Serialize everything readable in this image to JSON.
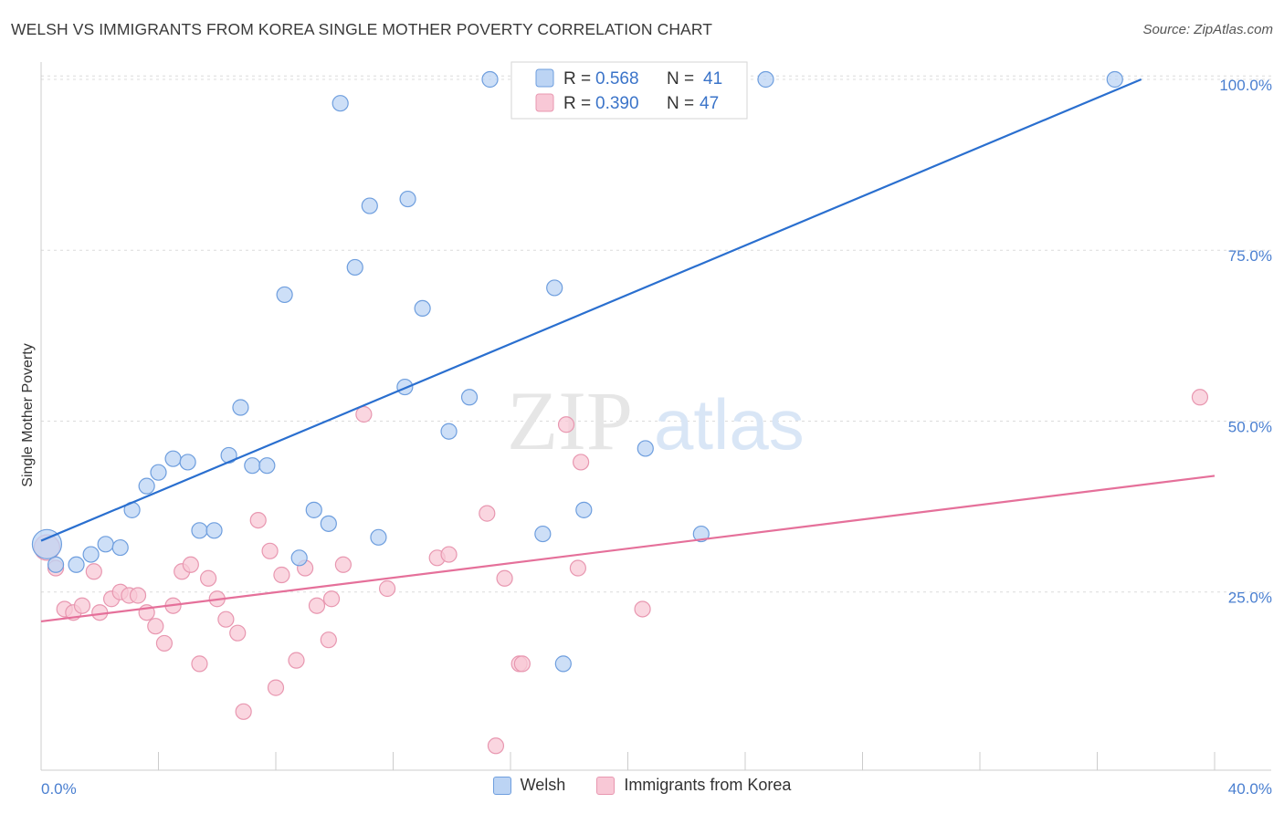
{
  "title": "WELSH VS IMMIGRANTS FROM KOREA SINGLE MOTHER POVERTY CORRELATION CHART",
  "source": "Source: ZipAtlas.com",
  "watermark": {
    "zip": "ZIP",
    "atlas": "atlas"
  },
  "colors": {
    "welsh_fill": "#bcd4f4",
    "welsh_stroke": "#6e9ede",
    "welsh_line": "#2a6fcf",
    "korea_fill": "#f8c8d6",
    "korea_stroke": "#e897b0",
    "korea_line": "#e5709a",
    "tick_text": "#4a7fd0",
    "grid": "#dcdcdc"
  },
  "stats_legend": [
    {
      "r_label": "R = ",
      "r_value": "0.568",
      "n_label": "N = ",
      "n_value": "41"
    },
    {
      "r_label": "R = ",
      "r_value": "0.390",
      "n_label": "N = ",
      "n_value": "47"
    }
  ],
  "chart_data": {
    "type": "scatter",
    "title": "WELSH VS IMMIGRANTS FROM KOREA SINGLE MOTHER POVERTY CORRELATION CHART",
    "xlabel": "",
    "ylabel": "Single Mother Poverty",
    "xlim": [
      0,
      40
    ],
    "ylim": [
      0,
      102
    ],
    "x_tick_labels": [
      {
        "v": 0,
        "label": "0.0%"
      },
      {
        "v": 40,
        "label": "40.0%"
      }
    ],
    "y_tick_labels": [
      {
        "v": 25,
        "label": "25.0%"
      },
      {
        "v": 50,
        "label": "50.0%"
      },
      {
        "v": 75,
        "label": "75.0%"
      },
      {
        "v": 100,
        "label": "100.0%"
      }
    ],
    "legend": "bottom-center",
    "grid": true,
    "series": [
      {
        "name": "Welsh",
        "trend": [
          [
            0,
            32.5
          ],
          [
            37.5,
            100
          ]
        ],
        "points": [
          [
            0.2,
            32.0
          ],
          [
            0.5,
            29.0
          ],
          [
            1.2,
            29.0
          ],
          [
            1.7,
            30.5
          ],
          [
            2.2,
            32.0
          ],
          [
            2.7,
            31.5
          ],
          [
            3.1,
            37.0
          ],
          [
            3.6,
            40.5
          ],
          [
            4.0,
            42.5
          ],
          [
            4.5,
            44.5
          ],
          [
            5.0,
            44.0
          ],
          [
            5.4,
            34.0
          ],
          [
            5.9,
            34.0
          ],
          [
            6.4,
            45.0
          ],
          [
            6.8,
            52.0
          ],
          [
            7.2,
            43.5
          ],
          [
            7.7,
            43.5
          ],
          [
            8.3,
            68.5
          ],
          [
            8.8,
            30.0
          ],
          [
            9.3,
            37.0
          ],
          [
            9.8,
            35.0
          ],
          [
            10.2,
            96.5
          ],
          [
            10.7,
            72.5
          ],
          [
            11.2,
            81.5
          ],
          [
            11.5,
            33.0
          ],
          [
            12.4,
            55.0
          ],
          [
            12.5,
            82.5
          ],
          [
            13.0,
            66.5
          ],
          [
            13.9,
            48.5
          ],
          [
            14.6,
            53.5
          ],
          [
            15.3,
            100.0
          ],
          [
            17.1,
            33.5
          ],
          [
            17.5,
            69.5
          ],
          [
            17.8,
            14.5
          ],
          [
            18.5,
            37.0
          ],
          [
            19.6,
            100.0
          ],
          [
            20.6,
            46.0
          ],
          [
            21.1,
            100.0
          ],
          [
            22.5,
            33.5
          ],
          [
            24.7,
            100.0
          ],
          [
            36.6,
            100.0
          ]
        ]
      },
      {
        "name": "Immigrants from Korea",
        "trend": [
          [
            0,
            20.7
          ],
          [
            40,
            42.0
          ]
        ],
        "points": [
          [
            0.2,
            31.5
          ],
          [
            0.5,
            28.5
          ],
          [
            0.8,
            22.5
          ],
          [
            1.1,
            22.0
          ],
          [
            1.4,
            23.0
          ],
          [
            1.8,
            28.0
          ],
          [
            2.0,
            22.0
          ],
          [
            2.4,
            24.0
          ],
          [
            2.7,
            25.0
          ],
          [
            3.0,
            24.5
          ],
          [
            3.3,
            24.5
          ],
          [
            3.6,
            22.0
          ],
          [
            3.9,
            20.0
          ],
          [
            4.2,
            17.5
          ],
          [
            4.5,
            23.0
          ],
          [
            4.8,
            28.0
          ],
          [
            5.1,
            29.0
          ],
          [
            5.4,
            14.5
          ],
          [
            5.7,
            27.0
          ],
          [
            6.0,
            24.0
          ],
          [
            6.3,
            21.0
          ],
          [
            6.7,
            19.0
          ],
          [
            6.9,
            7.5
          ],
          [
            7.4,
            35.5
          ],
          [
            7.8,
            31.0
          ],
          [
            8.0,
            11.0
          ],
          [
            8.2,
            27.5
          ],
          [
            8.7,
            15.0
          ],
          [
            9.0,
            28.5
          ],
          [
            9.4,
            23.0
          ],
          [
            9.8,
            18.0
          ],
          [
            9.9,
            24.0
          ],
          [
            10.3,
            29.0
          ],
          [
            11.0,
            51.0
          ],
          [
            11.8,
            25.5
          ],
          [
            13.5,
            30.0
          ],
          [
            13.9,
            30.5
          ],
          [
            15.2,
            36.5
          ],
          [
            15.5,
            2.5
          ],
          [
            15.8,
            27.0
          ],
          [
            16.3,
            14.5
          ],
          [
            16.4,
            14.5
          ],
          [
            17.9,
            49.5
          ],
          [
            18.3,
            28.5
          ],
          [
            18.4,
            44.0
          ],
          [
            20.5,
            22.5
          ],
          [
            39.5,
            53.5
          ]
        ]
      }
    ]
  },
  "bottom_legend": [
    {
      "label": "Welsh"
    },
    {
      "label": "Immigrants from Korea"
    }
  ]
}
